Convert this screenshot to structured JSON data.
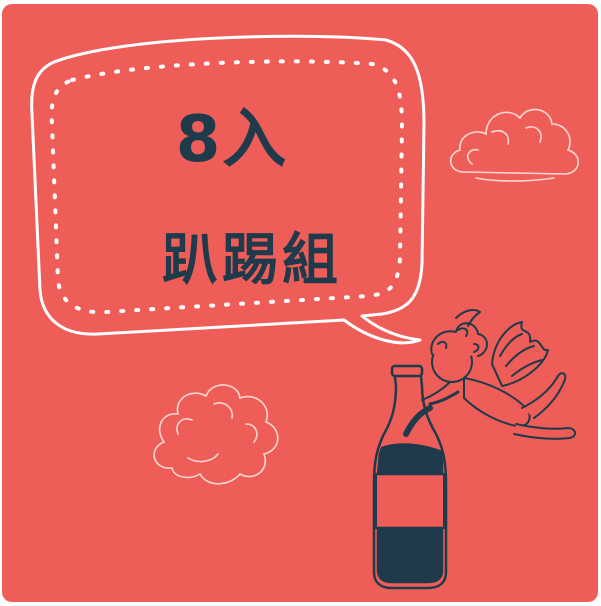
{
  "headline": {
    "line1": "8入",
    "line2": "趴踢組"
  },
  "colors": {
    "background": "#ef5d58",
    "text": "#1f3a4a",
    "outline": "#ffffff"
  },
  "icons": [
    "speech-bubble-icon",
    "cloud-icon",
    "bottle-icon",
    "cupid-icon"
  ]
}
